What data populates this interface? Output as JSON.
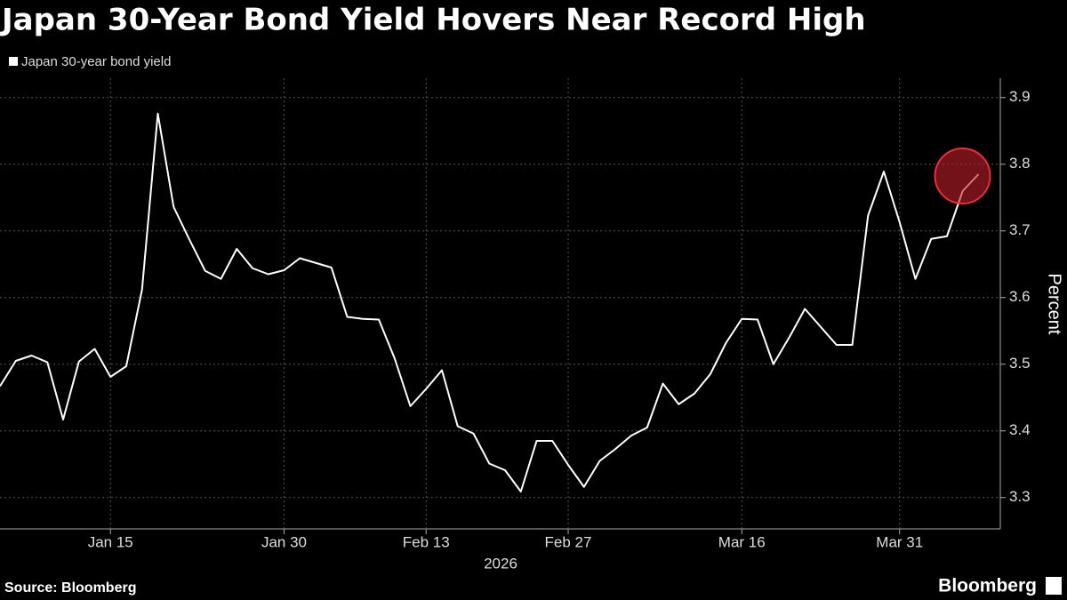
{
  "chart_data": {
    "type": "line",
    "title": "Japan 30-Year Bond Yield Hovers Near Record High",
    "xlabel": "2026",
    "ylabel": "Percent",
    "source": "Source: Bloomberg",
    "brand": "Bloomberg",
    "categories": [
      null,
      null,
      null,
      null,
      null,
      null,
      null,
      "Jan 15",
      null,
      null,
      null,
      null,
      null,
      null,
      null,
      null,
      null,
      null,
      "Jan 30",
      null,
      null,
      null,
      null,
      null,
      null,
      null,
      null,
      "Feb 13",
      null,
      null,
      null,
      null,
      null,
      null,
      null,
      null,
      "Feb 27",
      null,
      null,
      null,
      null,
      null,
      null,
      null,
      null,
      null,
      null,
      "Mar 16",
      null,
      null,
      null,
      null,
      null,
      null,
      null,
      null,
      null,
      "Mar 31",
      null,
      null,
      null,
      null,
      null
    ],
    "series": [
      {
        "name": "Japan 30-year bond yield",
        "color": "#ffffff",
        "values": [
          3.467,
          3.505,
          3.513,
          3.503,
          3.417,
          3.504,
          3.523,
          3.481,
          3.497,
          3.612,
          3.876,
          3.736,
          3.687,
          3.64,
          3.628,
          3.673,
          3.644,
          3.635,
          3.641,
          3.659,
          3.652,
          3.645,
          3.571,
          3.568,
          3.567,
          3.509,
          3.437,
          3.463,
          3.491,
          3.407,
          3.396,
          3.351,
          3.341,
          3.309,
          3.385,
          3.385,
          3.349,
          3.316,
          3.355,
          3.373,
          3.393,
          3.405,
          3.471,
          3.44,
          3.456,
          3.485,
          3.532,
          3.568,
          3.567,
          3.5,
          3.54,
          3.583,
          3.556,
          3.529,
          3.529,
          3.723,
          3.789,
          3.713,
          3.628,
          3.688,
          3.692,
          3.76,
          3.785
        ]
      }
    ],
    "ylim": [
      3.253,
      3.929
    ],
    "yticks": [
      3.3,
      3.4,
      3.5,
      3.6,
      3.7,
      3.8,
      3.9
    ],
    "grid": true,
    "highlight_last": true,
    "highlight_color": "#c0202a"
  }
}
